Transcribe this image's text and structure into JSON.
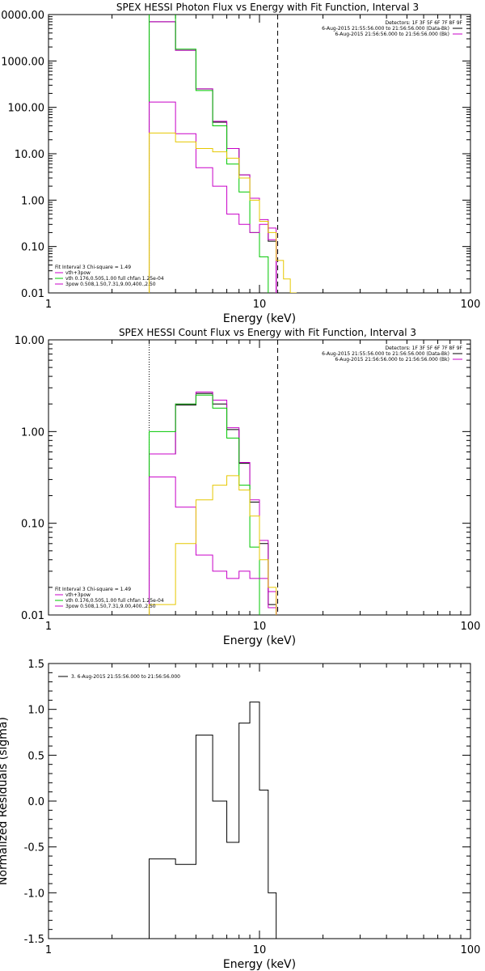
{
  "chart_data": [
    {
      "type": "line",
      "panel": "photon",
      "title": "SPEX HESSI Photon Flux vs Energy with Fit Function, Interval 3",
      "xlabel": "Energy (keV)",
      "ylabel": "",
      "xscale": "log",
      "yscale": "log",
      "xlim": [
        1,
        100
      ],
      "ylim": [
        0.01,
        10000
      ],
      "xticks": [
        "1",
        "10",
        "100"
      ],
      "yticks": [
        "0.01",
        "0.10",
        "1.00",
        "10.00",
        "100.00",
        "1000.00",
        "10000.00"
      ],
      "bin_edges": [
        3,
        4,
        5,
        6,
        7,
        8,
        9,
        10,
        11,
        12,
        13,
        14,
        15
      ],
      "series": [
        {
          "name": "",
          "color": "#000000",
          "values": [
            7000,
            1700,
            250,
            48,
            13,
            3.5,
            1.1,
            0.35,
            0.13
          ]
        },
        {
          "name": "vth+3pow",
          "color": "#c800c8",
          "values": [
            7000,
            1700,
            250,
            50,
            13,
            3.5,
            1.1,
            0.38,
            0.14
          ]
        },
        {
          "name": "vth 0.176,0.505,1.00  full chfan 1.25e-04",
          "color": "#00c800",
          "values": [
            20000,
            1800,
            230,
            40,
            6,
            1.5,
            0.2,
            0.06
          ]
        },
        {
          "name": "3pow 0.508,1.50,7.31,9.00,400.,2.50",
          "color": "#c800c8",
          "values": [
            130,
            27,
            5,
            2,
            0.5,
            0.3,
            0.2,
            0.3,
            0.25
          ]
        },
        {
          "name": "",
          "color": "#e6c800",
          "values": [
            28,
            18,
            13,
            11,
            8,
            3,
            1,
            0.35,
            0.2,
            0.05,
            0.02,
            0.01
          ]
        }
      ],
      "detectors": "Detectors: 1F 3F 5F 6F 7F 8F 9F",
      "legend_right": [
        {
          "label": "6-Aug-2015 21:55:56.000 to 21:56:56.000 (Data-Bk)",
          "color": "#000000"
        },
        {
          "label": "6-Aug-2015 21:56:56.000 to 21:56:56.000 (Bk)",
          "color": "#c800c8"
        }
      ],
      "fit_info": "Fit Interval 3   Chi-square = 1.49",
      "fit_range": [
        3,
        12.2
      ]
    },
    {
      "type": "line",
      "panel": "count",
      "title": "SPEX HESSI Count Flux vs Energy with Fit Function, Interval 3",
      "xlabel": "Energy (keV)",
      "ylabel": "",
      "xscale": "log",
      "yscale": "log",
      "xlim": [
        1,
        100
      ],
      "ylim": [
        0.01,
        10
      ],
      "xticks": [
        "1",
        "10",
        "100"
      ],
      "yticks": [
        "0.01",
        "0.10",
        "1.00",
        "10.00"
      ],
      "bin_edges": [
        3,
        4,
        5,
        6,
        7,
        8,
        9,
        10,
        11,
        12,
        13,
        14,
        15
      ],
      "series": [
        {
          "name": "",
          "color": "#000000",
          "values": [
            0.57,
            1.95,
            2.6,
            2.0,
            1.05,
            0.45,
            0.17,
            0.06,
            0.013
          ]
        },
        {
          "name": "vth+3pow",
          "color": "#c800c8",
          "values": [
            0.57,
            2.0,
            2.7,
            2.2,
            1.1,
            0.46,
            0.18,
            0.065,
            0.018
          ]
        },
        {
          "name": "vth 0.176,0.505,1.00  full chfan 1.25e-04",
          "color": "#00c800",
          "values": [
            1.0,
            2.0,
            2.5,
            1.8,
            0.85,
            0.26,
            0.055,
            0.009
          ]
        },
        {
          "name": "3pow 0.508,1.50,7.31,9.00,400.,2.50",
          "color": "#c800c8",
          "values": [
            0.32,
            0.15,
            0.045,
            0.03,
            0.025,
            0.03,
            0.025,
            0.025,
            0.012
          ]
        },
        {
          "name": "",
          "color": "#e6c800",
          "values": [
            0.013,
            0.06,
            0.18,
            0.26,
            0.33,
            0.23,
            0.12,
            0.04,
            0.02,
            0.005
          ]
        }
      ],
      "detectors": "Detectors: 1F 3F 5F 6F 7F 8F 9F",
      "legend_right": [
        {
          "label": "6-Aug-2015 21:55:56.000 to 21:56:56.000 (Data-Bk)",
          "color": "#000000"
        },
        {
          "label": "6-Aug-2015 21:56:56.000 to 21:56:56.000 (Bk)",
          "color": "#c800c8"
        }
      ],
      "fit_info": "Fit Interval 3   Chi-square = 1.49",
      "fit_range": [
        3,
        12.2
      ]
    },
    {
      "type": "line",
      "panel": "residuals",
      "title": "",
      "xlabel": "Energy (keV)",
      "ylabel": "Normalized Residuals (sigma)",
      "xscale": "log",
      "yscale": "linear",
      "xlim": [
        1,
        100
      ],
      "ylim": [
        -1.5,
        1.5
      ],
      "xticks": [
        "1",
        "10",
        "100"
      ],
      "yticks": [
        "-1.5",
        "-1.0",
        "-0.5",
        "0.0",
        "0.5",
        "1.0",
        "1.5"
      ],
      "bin_edges": [
        3,
        4,
        5,
        6,
        7,
        8,
        9,
        10,
        11,
        12
      ],
      "series": [
        {
          "name": "3.  6-Aug-2015 21:55:56.000 to 21:56:56.000",
          "color": "#000000",
          "values": [
            -0.63,
            -0.69,
            0.72,
            0.0,
            -0.45,
            0.85,
            1.08,
            0.12,
            -1.0
          ]
        }
      ]
    }
  ]
}
